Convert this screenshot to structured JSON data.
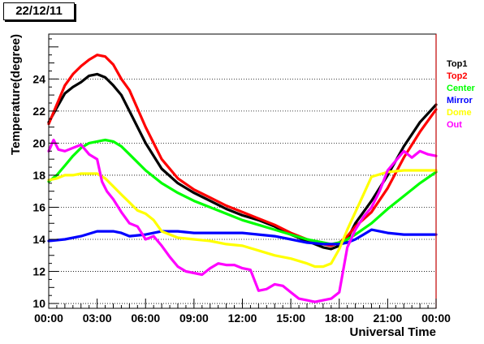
{
  "title": "22/12/11",
  "chart_data": {
    "type": "line",
    "xlabel": "Universal Time",
    "ylabel": "Temperature(degree)",
    "xlim": [
      0,
      24
    ],
    "ylim": [
      9.7,
      26.8
    ],
    "x_tick_values": [
      0,
      3,
      6,
      9,
      12,
      15,
      18,
      21,
      24
    ],
    "x_tick_labels": [
      "00:00",
      "03:00",
      "06:00",
      "09:00",
      "12:00",
      "15:00",
      "18:00",
      "21:00",
      "00:00"
    ],
    "y_tick_values": [
      10,
      12,
      14,
      16,
      18,
      20,
      22,
      24
    ],
    "y_tick_labels": [
      "10",
      "12",
      "14",
      "16",
      "18",
      "20",
      "22",
      "24"
    ],
    "grid": "horizontal-dotted",
    "legend_position": "right",
    "series": [
      {
        "name": "Top1",
        "color": "#000000",
        "x": [
          0,
          0.5,
          1,
          1.5,
          2,
          2.5,
          3,
          3.5,
          4,
          4.5,
          5,
          6,
          7,
          8,
          9,
          10,
          11,
          12,
          13,
          14,
          15,
          16,
          17,
          17.5,
          18,
          18.5,
          19,
          20,
          21,
          22,
          23,
          24
        ],
        "y": [
          21.3,
          22.2,
          23.1,
          23.5,
          23.8,
          24.2,
          24.3,
          24.1,
          23.6,
          23.0,
          22.0,
          20.0,
          18.4,
          17.5,
          16.9,
          16.4,
          15.9,
          15.5,
          15.2,
          14.8,
          14.3,
          13.9,
          13.5,
          13.4,
          13.6,
          14.0,
          15.0,
          16.4,
          18.0,
          19.8,
          21.3,
          22.4
        ]
      },
      {
        "name": "Top2",
        "color": "#ff0000",
        "x": [
          0,
          0.5,
          1,
          1.5,
          2,
          2.5,
          3,
          3.5,
          4,
          4.5,
          5,
          6,
          7,
          8,
          9,
          10,
          11,
          12,
          13,
          14,
          15,
          16,
          17,
          17.5,
          18,
          18.5,
          19,
          20,
          21,
          22,
          23,
          24
        ],
        "y": [
          21.2,
          22.4,
          23.6,
          24.3,
          24.8,
          25.2,
          25.5,
          25.4,
          24.9,
          24.0,
          23.3,
          21.0,
          19.0,
          17.8,
          17.1,
          16.6,
          16.1,
          15.7,
          15.3,
          14.9,
          14.4,
          14.0,
          13.7,
          13.6,
          13.8,
          14.2,
          14.8,
          15.7,
          17.2,
          19.1,
          20.7,
          22.1
        ]
      },
      {
        "name": "Center",
        "color": "#00ff00",
        "x": [
          0,
          0.5,
          1,
          1.5,
          2,
          2.5,
          3,
          3.5,
          4,
          4.5,
          5,
          6,
          7,
          8,
          9,
          10,
          11,
          12,
          13,
          14,
          15,
          16,
          17,
          17.5,
          18,
          18.5,
          19,
          20,
          21,
          22,
          23,
          24
        ],
        "y": [
          17.6,
          18.0,
          18.6,
          19.2,
          19.7,
          20.0,
          20.1,
          20.2,
          20.1,
          19.8,
          19.3,
          18.3,
          17.5,
          16.9,
          16.4,
          16.0,
          15.6,
          15.2,
          14.9,
          14.6,
          14.3,
          14.0,
          13.8,
          13.7,
          13.8,
          14.0,
          14.3,
          15.0,
          15.9,
          16.7,
          17.5,
          18.2
        ]
      },
      {
        "name": "Mirror",
        "color": "#0000ff",
        "x": [
          0,
          1,
          2,
          3,
          3.5,
          4,
          4.5,
          5,
          6,
          7,
          8,
          9,
          10,
          11,
          12,
          13,
          14,
          15,
          16,
          17,
          17.5,
          18,
          18.5,
          19,
          19.5,
          20,
          20.5,
          21,
          22,
          23,
          24
        ],
        "y": [
          13.9,
          14.0,
          14.2,
          14.5,
          14.5,
          14.5,
          14.4,
          14.2,
          14.3,
          14.5,
          14.5,
          14.4,
          14.4,
          14.4,
          14.4,
          14.3,
          14.2,
          14.0,
          13.8,
          13.7,
          13.7,
          13.7,
          13.8,
          14.0,
          14.3,
          14.6,
          14.5,
          14.4,
          14.3,
          14.3,
          14.3
        ]
      },
      {
        "name": "Dome",
        "color": "#ffff00",
        "x": [
          0,
          0.5,
          1,
          1.5,
          2,
          2.5,
          3,
          3.5,
          4,
          4.5,
          5,
          5.5,
          6,
          6.5,
          7,
          8,
          9,
          10,
          11,
          12,
          13,
          14,
          15,
          16,
          16.5,
          17,
          17.5,
          18,
          18.5,
          19,
          19.5,
          20,
          21,
          22,
          23,
          24
        ],
        "y": [
          17.7,
          17.8,
          18.0,
          18.0,
          18.1,
          18.1,
          18.1,
          17.8,
          17.3,
          16.8,
          16.3,
          15.8,
          15.6,
          15.2,
          14.5,
          14.1,
          14.0,
          13.9,
          13.7,
          13.6,
          13.3,
          13.0,
          12.8,
          12.5,
          12.3,
          12.3,
          12.5,
          13.4,
          14.6,
          15.7,
          16.8,
          17.9,
          18.2,
          18.3,
          18.3,
          18.3
        ]
      },
      {
        "name": "Out",
        "color": "#ff00ff",
        "x": [
          0,
          0.3,
          0.6,
          1,
          1.5,
          2,
          2.5,
          3,
          3.3,
          3.6,
          4,
          4.5,
          5,
          5.5,
          6,
          6.5,
          7,
          7.5,
          8,
          8.5,
          9,
          9.5,
          10,
          10.5,
          11,
          11.5,
          12,
          12.5,
          13,
          13.5,
          14,
          14.5,
          15,
          15.5,
          16,
          16.5,
          17,
          17.5,
          18,
          18.5,
          19,
          19.5,
          20,
          20.5,
          21,
          21.5,
          22,
          22.5,
          23,
          23.5,
          24
        ],
        "y": [
          19.5,
          20.2,
          19.6,
          19.5,
          19.7,
          19.9,
          19.3,
          19.0,
          17.6,
          17.0,
          16.5,
          15.7,
          15.0,
          14.8,
          14.0,
          14.2,
          13.6,
          12.9,
          12.3,
          12.0,
          11.9,
          11.8,
          12.2,
          12.5,
          12.4,
          12.4,
          12.2,
          12.1,
          10.8,
          10.9,
          11.2,
          11.1,
          10.7,
          10.3,
          10.2,
          10.1,
          10.2,
          10.3,
          10.7,
          13.5,
          14.6,
          15.4,
          16.0,
          17.0,
          18.3,
          18.9,
          19.5,
          19.1,
          19.5,
          19.3,
          19.2
        ]
      }
    ]
  }
}
